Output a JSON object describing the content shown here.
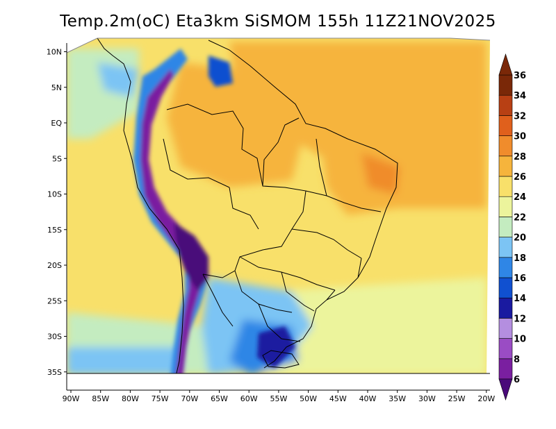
{
  "title": "Temp.2m(oC) Eta3km SiSMOM 155h 11Z21NOV2025",
  "map": {
    "variable": "2 m air temperature",
    "unit": "oC",
    "lon_range": [
      -90,
      -20
    ],
    "lat_range": [
      -38,
      12
    ],
    "lat_ticks": [
      {
        "label": "10N",
        "value": 10
      },
      {
        "label": "5N",
        "value": 5
      },
      {
        "label": "EQ",
        "value": 0
      },
      {
        "label": "5S",
        "value": -5
      },
      {
        "label": "10S",
        "value": -10
      },
      {
        "label": "15S",
        "value": -15
      },
      {
        "label": "20S",
        "value": -20
      },
      {
        "label": "25S",
        "value": -25
      },
      {
        "label": "30S",
        "value": -30
      },
      {
        "label": "35S",
        "value": -35
      }
    ],
    "lon_ticks": [
      {
        "label": "90W",
        "value": -90
      },
      {
        "label": "85W",
        "value": -85
      },
      {
        "label": "80W",
        "value": -80
      },
      {
        "label": "75W",
        "value": -75
      },
      {
        "label": "70W",
        "value": -70
      },
      {
        "label": "65W",
        "value": -65
      },
      {
        "label": "60W",
        "value": -60
      },
      {
        "label": "55W",
        "value": -55
      },
      {
        "label": "50W",
        "value": -50
      },
      {
        "label": "45W",
        "value": -45
      },
      {
        "label": "40W",
        "value": -40
      },
      {
        "label": "35W",
        "value": -35
      },
      {
        "label": "30W",
        "value": -30
      },
      {
        "label": "25W",
        "value": -25
      },
      {
        "label": "20W",
        "value": -20
      }
    ]
  },
  "colorbar": {
    "levels": [
      "6",
      "8",
      "10",
      "12",
      "14",
      "16",
      "18",
      "20",
      "22",
      "24",
      "26",
      "28",
      "30",
      "32",
      "34",
      "36"
    ],
    "colors": [
      "#4a0a7a",
      "#7a1fa0",
      "#9a4cc4",
      "#b48ee0",
      "#1a1aa0",
      "#1050d0",
      "#2f86e6",
      "#7cc4f4",
      "#c4ecc0",
      "#ecf49c",
      "#f8e06a",
      "#f6b43c",
      "#f08c2c",
      "#e0601c",
      "#b84014",
      "#7a2808"
    ],
    "low_color": "#4a0a7a",
    "high_color": "#7a2808"
  }
}
